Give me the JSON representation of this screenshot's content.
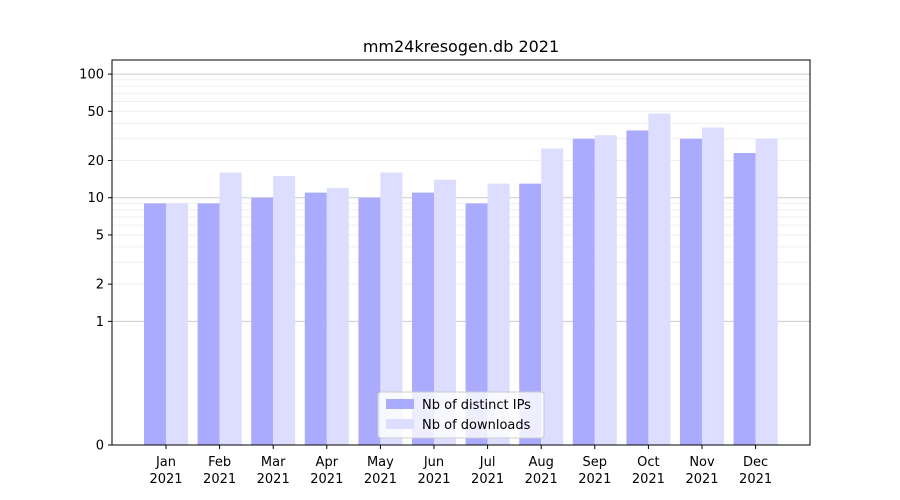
{
  "chart_data": {
    "type": "bar",
    "title": "mm24kresogen.db 2021",
    "xlabel": "",
    "ylabel": "",
    "yscale": "symlog",
    "ylim": [
      0,
      130
    ],
    "yticks": [
      0,
      1,
      2,
      5,
      10,
      20,
      50,
      100
    ],
    "ytick_labels": [
      "0",
      "1",
      "2",
      "5",
      "10",
      "20",
      "50",
      "100"
    ],
    "categories": [
      "Jan",
      "Feb",
      "Mar",
      "Apr",
      "May",
      "Jun",
      "Jul",
      "Aug",
      "Sep",
      "Oct",
      "Nov",
      "Dec"
    ],
    "category_sublabel": "2021",
    "series": [
      {
        "name": "Nb of distinct IPs",
        "color": "#aaaaff",
        "values": [
          9,
          9,
          10,
          11,
          10,
          11,
          9,
          13,
          30,
          35,
          30,
          23
        ]
      },
      {
        "name": "Nb of downloads",
        "color": "#ddddff",
        "values": [
          9,
          16,
          15,
          12,
          16,
          14,
          13,
          25,
          32,
          48,
          37,
          30
        ]
      }
    ],
    "grid": true,
    "legend_position": "lower-center"
  }
}
